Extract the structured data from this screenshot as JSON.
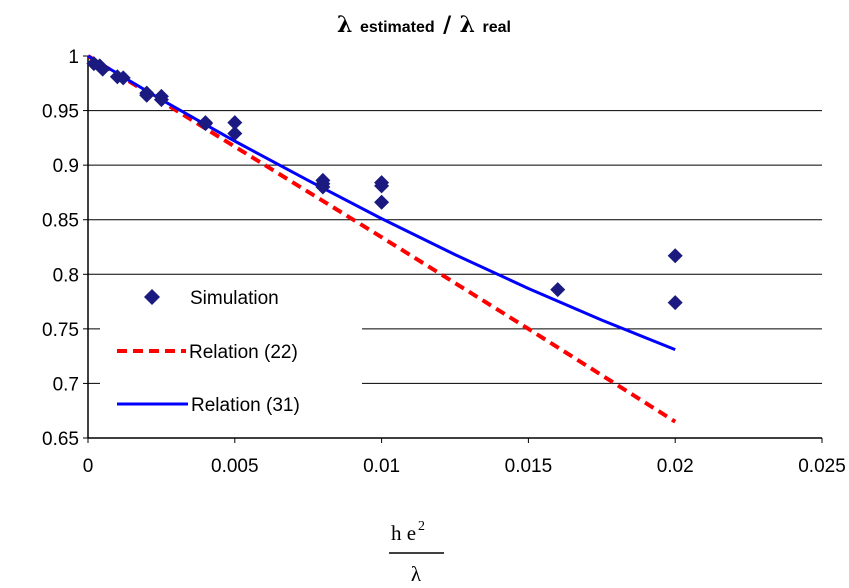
{
  "chart_data": {
    "type": "scatter",
    "title": {
      "symbol": "λ",
      "sub1": "estimated",
      "sep": "/",
      "symbol2": "λ",
      "sub2": "real"
    },
    "xlabel": {
      "numerator": "h e",
      "exponent": "2",
      "denominator": "λ"
    },
    "xlim": [
      0,
      0.025
    ],
    "ylim": [
      0.65,
      1
    ],
    "x_ticks": [
      "0",
      "0.005",
      "0.01",
      "0.015",
      "0.02",
      "0.025"
    ],
    "y_ticks": [
      "1",
      "0.95",
      "0.9",
      "0.85",
      "0.8",
      "0.75",
      "0.7",
      "0.65"
    ],
    "grid": "horizontal",
    "legend_position": "left",
    "series": [
      {
        "name": "Simulation",
        "kind": "markers",
        "marker": "diamond",
        "color": "#1a1a80",
        "points": [
          [
            0.0002,
            0.993
          ],
          [
            0.0004,
            0.991
          ],
          [
            0.0005,
            0.988
          ],
          [
            0.001,
            0.981
          ],
          [
            0.0012,
            0.98
          ],
          [
            0.002,
            0.966
          ],
          [
            0.002,
            0.964
          ],
          [
            0.0025,
            0.963
          ],
          [
            0.0025,
            0.96
          ],
          [
            0.004,
            0.939
          ],
          [
            0.004,
            0.938
          ],
          [
            0.005,
            0.939
          ],
          [
            0.005,
            0.929
          ],
          [
            0.008,
            0.886
          ],
          [
            0.008,
            0.883
          ],
          [
            0.008,
            0.88
          ],
          [
            0.01,
            0.884
          ],
          [
            0.01,
            0.881
          ],
          [
            0.01,
            0.866
          ],
          [
            0.016,
            0.786
          ],
          [
            0.02,
            0.817
          ],
          [
            0.02,
            0.774
          ]
        ]
      },
      {
        "name": "Relation (22)",
        "kind": "dashed-line",
        "color": "#ff0000",
        "x": [
          0,
          0.005,
          0.01,
          0.015,
          0.02
        ],
        "y": [
          1.0,
          0.917,
          0.834,
          0.75,
          0.665
        ]
      },
      {
        "name": "Relation (31)",
        "kind": "line",
        "color": "#0000ff",
        "x": [
          0,
          0.0025,
          0.005,
          0.0075,
          0.01,
          0.0125,
          0.015,
          0.0175,
          0.02
        ],
        "y": [
          1.0,
          0.96,
          0.922,
          0.886,
          0.851,
          0.818,
          0.787,
          0.758,
          0.731
        ]
      }
    ]
  }
}
